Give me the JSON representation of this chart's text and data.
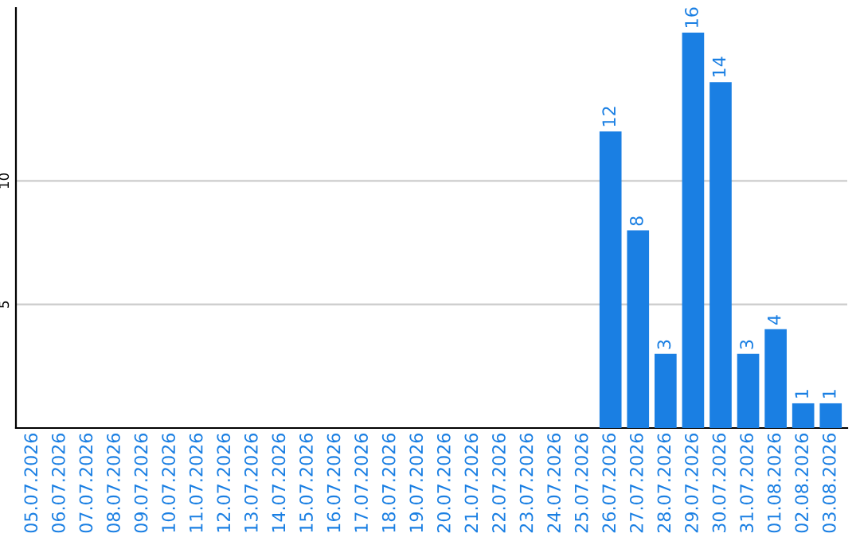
{
  "chart_data": {
    "type": "bar",
    "categories": [
      "05.07.2026",
      "06.07.2026",
      "07.07.2026",
      "08.07.2026",
      "09.07.2026",
      "10.07.2026",
      "11.07.2026",
      "12.07.2026",
      "13.07.2026",
      "14.07.2026",
      "15.07.2026",
      "16.07.2026",
      "17.07.2026",
      "18.07.2026",
      "19.07.2026",
      "20.07.2026",
      "21.07.2026",
      "22.07.2026",
      "23.07.2026",
      "24.07.2026",
      "25.07.2026",
      "26.07.2026",
      "27.07.2026",
      "28.07.2026",
      "29.07.2026",
      "30.07.2026",
      "31.07.2026",
      "01.08.2026",
      "02.08.2026",
      "03.08.2026"
    ],
    "values": [
      0,
      0,
      0,
      0,
      0,
      0,
      0,
      0,
      0,
      0,
      0,
      0,
      0,
      0,
      0,
      0,
      0,
      0,
      0,
      0,
      0,
      12,
      8,
      3,
      16,
      14,
      3,
      4,
      1,
      1
    ],
    "value_labels": [
      null,
      null,
      null,
      null,
      null,
      null,
      null,
      null,
      null,
      null,
      null,
      null,
      null,
      null,
      null,
      null,
      null,
      null,
      null,
      null,
      null,
      "12",
      "8",
      "3",
      "16",
      "14",
      "3",
      "4",
      "1",
      "1"
    ],
    "color": "#1a7fe3",
    "ylim": [
      0,
      17
    ],
    "yticks": [
      5,
      10
    ],
    "grid": "y"
  }
}
